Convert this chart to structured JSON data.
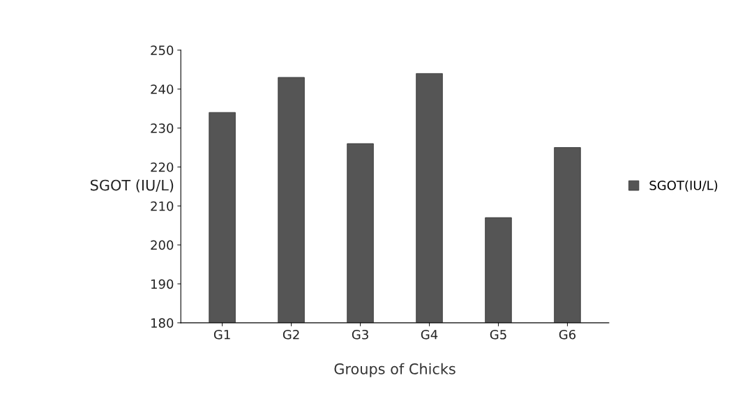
{
  "chart_data": {
    "type": "bar",
    "xlabel": "Groups of Chicks",
    "ylabel": "SGOT (IU/L)",
    "categories": [
      "G1",
      "G2",
      "G3",
      "G4",
      "G5",
      "G6"
    ],
    "series": [
      {
        "name": "SGOT(IU/L)",
        "color": "#555555",
        "values": [
          234,
          243,
          226,
          244,
          207,
          225
        ]
      }
    ],
    "ylim": [
      180,
      250
    ],
    "yticks": [
      180,
      190,
      200,
      210,
      220,
      230,
      240,
      250
    ],
    "grid": false,
    "legend": "right"
  }
}
